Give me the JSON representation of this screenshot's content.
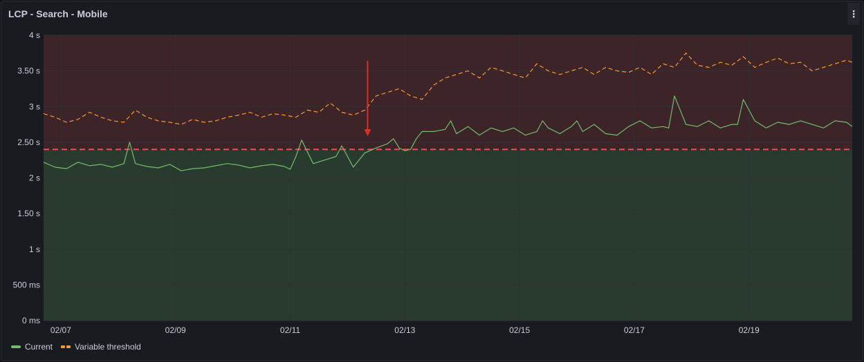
{
  "panel": {
    "title": "LCP - Search - Mobile",
    "menu_icon": "⋮"
  },
  "colors": {
    "current": "#73bf69",
    "threshold_line": "#ff9830",
    "fixed_threshold": "#f2495c",
    "bad_region": "#3c2429",
    "good_region": "#293a2f",
    "grid": "#2f3338",
    "arrow": "#e02f1f"
  },
  "legend": [
    {
      "label": "Current",
      "color": "#73bf69",
      "style": "solid"
    },
    {
      "label": "Variable threshold",
      "color": "#ff9830",
      "style": "dashed"
    }
  ],
  "chart_data": {
    "type": "line",
    "title": "LCP - Search - Mobile",
    "x_start_day": 6.7,
    "x_end_day": 20.8,
    "y_ticks": [
      {
        "value": 0,
        "label": "0 ms"
      },
      {
        "value": 0.5,
        "label": "500 ms"
      },
      {
        "value": 1,
        "label": "1 s"
      },
      {
        "value": 1.5,
        "label": "1.50 s"
      },
      {
        "value": 2,
        "label": "2 s"
      },
      {
        "value": 2.5,
        "label": "2.50 s"
      },
      {
        "value": 3,
        "label": "3 s"
      },
      {
        "value": 3.5,
        "label": "3.50 s"
      },
      {
        "value": 4,
        "label": "4 s"
      }
    ],
    "ylim": [
      0,
      4
    ],
    "x_ticks": [
      {
        "day": 7,
        "label": "02/07"
      },
      {
        "day": 9,
        "label": "02/09"
      },
      {
        "day": 11,
        "label": "02/11"
      },
      {
        "day": 13,
        "label": "02/13"
      },
      {
        "day": 15,
        "label": "02/15"
      },
      {
        "day": 17,
        "label": "02/17"
      },
      {
        "day": 19,
        "label": "02/19"
      }
    ],
    "fixed_threshold": 2.4,
    "annotation_arrow_day": 12.35,
    "grid": true,
    "legend_position": "bottom-left",
    "series": [
      {
        "name": "Current",
        "style": "solid",
        "x": [
          6.7,
          6.9,
          7.1,
          7.3,
          7.5,
          7.7,
          7.9,
          8.1,
          8.2,
          8.3,
          8.5,
          8.7,
          8.9,
          9.1,
          9.3,
          9.5,
          9.7,
          9.9,
          10.1,
          10.3,
          10.5,
          10.7,
          10.9,
          11.0,
          11.1,
          11.2,
          11.4,
          11.6,
          11.8,
          11.9,
          12.1,
          12.3,
          12.5,
          12.7,
          12.8,
          12.9,
          13.0,
          13.1,
          13.2,
          13.3,
          13.5,
          13.7,
          13.8,
          13.9,
          14.1,
          14.3,
          14.5,
          14.7,
          14.9,
          15.1,
          15.3,
          15.4,
          15.5,
          15.7,
          15.9,
          16.0,
          16.1,
          16.3,
          16.5,
          16.7,
          16.9,
          17.1,
          17.3,
          17.5,
          17.6,
          17.7,
          17.9,
          18.1,
          18.3,
          18.5,
          18.7,
          18.8,
          18.9,
          19.1,
          19.3,
          19.5,
          19.7,
          19.9,
          20.1,
          20.3,
          20.5,
          20.7,
          20.8
        ],
        "values": [
          2.22,
          2.15,
          2.13,
          2.22,
          2.17,
          2.19,
          2.15,
          2.2,
          2.5,
          2.2,
          2.16,
          2.14,
          2.19,
          2.1,
          2.13,
          2.14,
          2.17,
          2.2,
          2.18,
          2.14,
          2.17,
          2.19,
          2.16,
          2.12,
          2.3,
          2.53,
          2.2,
          2.25,
          2.3,
          2.45,
          2.15,
          2.35,
          2.42,
          2.48,
          2.55,
          2.42,
          2.38,
          2.4,
          2.55,
          2.65,
          2.65,
          2.68,
          2.8,
          2.62,
          2.72,
          2.6,
          2.7,
          2.65,
          2.7,
          2.6,
          2.65,
          2.8,
          2.7,
          2.62,
          2.72,
          2.8,
          2.65,
          2.75,
          2.62,
          2.6,
          2.72,
          2.8,
          2.7,
          2.72,
          2.7,
          3.15,
          2.75,
          2.72,
          2.8,
          2.7,
          2.75,
          2.75,
          3.1,
          2.8,
          2.7,
          2.78,
          2.75,
          2.8,
          2.75,
          2.7,
          2.8,
          2.78,
          2.72
        ]
      },
      {
        "name": "Variable threshold",
        "style": "dashed",
        "x": [
          6.7,
          6.9,
          7.1,
          7.3,
          7.5,
          7.7,
          7.9,
          8.1,
          8.3,
          8.5,
          8.7,
          8.9,
          9.1,
          9.3,
          9.5,
          9.7,
          9.9,
          10.1,
          10.3,
          10.5,
          10.7,
          10.9,
          11.1,
          11.3,
          11.5,
          11.7,
          11.9,
          12.1,
          12.3,
          12.5,
          12.7,
          12.9,
          13.1,
          13.3,
          13.5,
          13.7,
          13.9,
          14.1,
          14.3,
          14.5,
          14.7,
          14.9,
          15.1,
          15.3,
          15.5,
          15.7,
          15.9,
          16.1,
          16.3,
          16.5,
          16.7,
          16.9,
          17.1,
          17.3,
          17.5,
          17.7,
          17.9,
          18.1,
          18.3,
          18.5,
          18.7,
          18.9,
          19.1,
          19.3,
          19.5,
          19.7,
          19.9,
          20.1,
          20.3,
          20.5,
          20.7,
          20.8
        ],
        "values": [
          2.9,
          2.85,
          2.78,
          2.82,
          2.92,
          2.85,
          2.8,
          2.78,
          2.95,
          2.85,
          2.8,
          2.78,
          2.75,
          2.82,
          2.78,
          2.8,
          2.85,
          2.88,
          2.92,
          2.85,
          2.9,
          2.88,
          2.85,
          2.95,
          2.92,
          3.05,
          2.92,
          2.88,
          2.95,
          3.15,
          3.2,
          3.25,
          3.15,
          3.1,
          3.3,
          3.4,
          3.45,
          3.5,
          3.4,
          3.55,
          3.5,
          3.45,
          3.4,
          3.6,
          3.5,
          3.45,
          3.5,
          3.55,
          3.45,
          3.55,
          3.5,
          3.48,
          3.55,
          3.45,
          3.6,
          3.55,
          3.75,
          3.58,
          3.55,
          3.62,
          3.58,
          3.7,
          3.55,
          3.62,
          3.68,
          3.6,
          3.62,
          3.5,
          3.55,
          3.6,
          3.65,
          3.62
        ]
      }
    ]
  }
}
